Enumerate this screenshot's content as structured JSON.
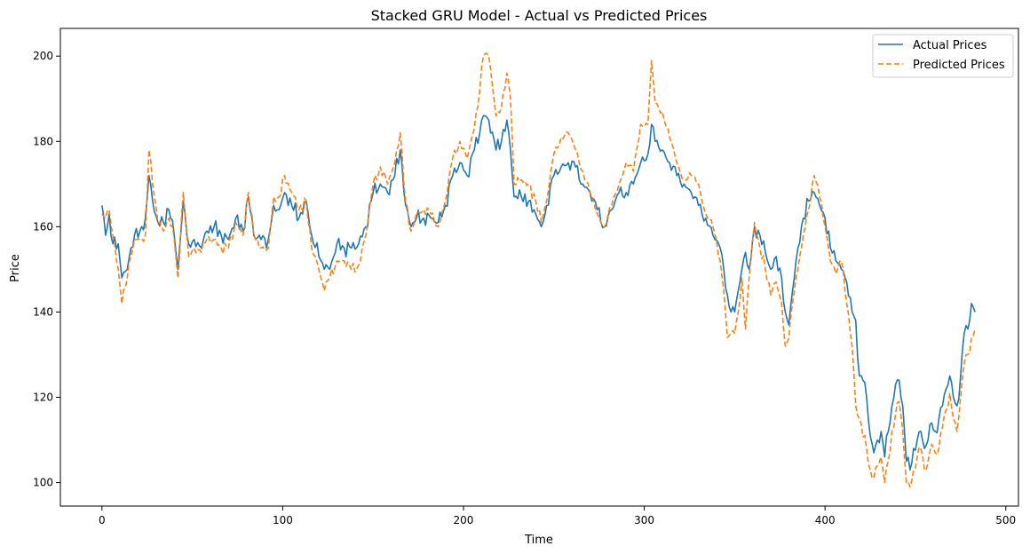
{
  "chart_data": {
    "type": "line",
    "title": "Stacked GRU Model - Actual vs Predicted Prices",
    "xlabel": "Time",
    "ylabel": "Price",
    "xlim": [
      -23,
      507
    ],
    "ylim": [
      94.5,
      206.5
    ],
    "x_ticks": [
      0,
      100,
      200,
      300,
      400,
      500
    ],
    "y_ticks": [
      100,
      120,
      140,
      160,
      180,
      200
    ],
    "grid": false,
    "legend_position": "top-right",
    "series": [
      {
        "name": "Actual Prices",
        "color": "#1f77b4",
        "style": "solid",
        "knots": [
          [
            0,
            165
          ],
          [
            2,
            158
          ],
          [
            4,
            163
          ],
          [
            6,
            156
          ],
          [
            9,
            156
          ],
          [
            11,
            148
          ],
          [
            14,
            150
          ],
          [
            16,
            155
          ],
          [
            18,
            158
          ],
          [
            21,
            159
          ],
          [
            24,
            162
          ],
          [
            26,
            172
          ],
          [
            28,
            166
          ],
          [
            31,
            161
          ],
          [
            34,
            161
          ],
          [
            37,
            164
          ],
          [
            40,
            158
          ],
          [
            42,
            150
          ],
          [
            45,
            166
          ],
          [
            48,
            156
          ],
          [
            51,
            157
          ],
          [
            55,
            155
          ],
          [
            58,
            159
          ],
          [
            62,
            160
          ],
          [
            66,
            158
          ],
          [
            70,
            157
          ],
          [
            74,
            162
          ],
          [
            78,
            159
          ],
          [
            81,
            167
          ],
          [
            84,
            158
          ],
          [
            88,
            157
          ],
          [
            92,
            157
          ],
          [
            95,
            165
          ],
          [
            98,
            164
          ],
          [
            101,
            168
          ],
          [
            105,
            165
          ],
          [
            109,
            162
          ],
          [
            113,
            166
          ],
          [
            116,
            158
          ],
          [
            120,
            153
          ],
          [
            123,
            150
          ],
          [
            126,
            150
          ],
          [
            130,
            156
          ],
          [
            134,
            155
          ],
          [
            138,
            155
          ],
          [
            142,
            156
          ],
          [
            146,
            160
          ],
          [
            150,
            168
          ],
          [
            154,
            170
          ],
          [
            158,
            168
          ],
          [
            162,
            172
          ],
          [
            165,
            178
          ],
          [
            168,
            165
          ],
          [
            171,
            160
          ],
          [
            174,
            162
          ],
          [
            178,
            162
          ],
          [
            182,
            162
          ],
          [
            186,
            161
          ],
          [
            190,
            165
          ],
          [
            194,
            172
          ],
          [
            198,
            175
          ],
          [
            202,
            172
          ],
          [
            206,
            178
          ],
          [
            209,
            182
          ],
          [
            211,
            186
          ],
          [
            214,
            185
          ],
          [
            218,
            178
          ],
          [
            221,
            180
          ],
          [
            224,
            185
          ],
          [
            226,
            178
          ],
          [
            228,
            167
          ],
          [
            232,
            167
          ],
          [
            236,
            166
          ],
          [
            240,
            163
          ],
          [
            243,
            160
          ],
          [
            246,
            165
          ],
          [
            250,
            172
          ],
          [
            254,
            174
          ],
          [
            258,
            175
          ],
          [
            262,
            174
          ],
          [
            266,
            170
          ],
          [
            270,
            168
          ],
          [
            274,
            164
          ],
          [
            278,
            160
          ],
          [
            282,
            164
          ],
          [
            286,
            168
          ],
          [
            290,
            168
          ],
          [
            294,
            170
          ],
          [
            298,
            175
          ],
          [
            302,
            177
          ],
          [
            304,
            184
          ],
          [
            306,
            180
          ],
          [
            310,
            178
          ],
          [
            314,
            175
          ],
          [
            318,
            172
          ],
          [
            322,
            170
          ],
          [
            326,
            168
          ],
          [
            330,
            165
          ],
          [
            334,
            162
          ],
          [
            338,
            158
          ],
          [
            342,
            155
          ],
          [
            344,
            150
          ],
          [
            346,
            144
          ],
          [
            348,
            140
          ],
          [
            350,
            140
          ],
          [
            352,
            145
          ],
          [
            354,
            150
          ],
          [
            356,
            154
          ],
          [
            358,
            150
          ],
          [
            361,
            160
          ],
          [
            364,
            158
          ],
          [
            367,
            154
          ],
          [
            370,
            150
          ],
          [
            373,
            153
          ],
          [
            376,
            148
          ],
          [
            378,
            140
          ],
          [
            380,
            137
          ],
          [
            382,
            145
          ],
          [
            385,
            155
          ],
          [
            388,
            162
          ],
          [
            391,
            166
          ],
          [
            394,
            168
          ],
          [
            397,
            165
          ],
          [
            400,
            162
          ],
          [
            403,
            155
          ],
          [
            406,
            152
          ],
          [
            409,
            150
          ],
          [
            412,
            147
          ],
          [
            415,
            140
          ],
          [
            417,
            138
          ],
          [
            419,
            125
          ],
          [
            421,
            124
          ],
          [
            423,
            120
          ],
          [
            425,
            111
          ],
          [
            427,
            107
          ],
          [
            429,
            110
          ],
          [
            431,
            112
          ],
          [
            433,
            106
          ],
          [
            435,
            112
          ],
          [
            437,
            118
          ],
          [
            439,
            123
          ],
          [
            441,
            124
          ],
          [
            443,
            118
          ],
          [
            445,
            105
          ],
          [
            447,
            103
          ],
          [
            449,
            108
          ],
          [
            451,
            110
          ],
          [
            453,
            112
          ],
          [
            455,
            108
          ],
          [
            457,
            110
          ],
          [
            459,
            114
          ],
          [
            461,
            112
          ],
          [
            463,
            115
          ],
          [
            465,
            118
          ],
          [
            467,
            122
          ],
          [
            469,
            125
          ],
          [
            471,
            120
          ],
          [
            473,
            118
          ],
          [
            475,
            125
          ],
          [
            477,
            135
          ],
          [
            479,
            136
          ],
          [
            481,
            142
          ],
          [
            483,
            140
          ]
        ]
      },
      {
        "name": "Predicted Prices",
        "color": "#ff7f0e",
        "style": "dashed",
        "knots": [
          [
            0,
            163
          ],
          [
            2,
            162
          ],
          [
            4,
            164
          ],
          [
            6,
            158
          ],
          [
            9,
            150
          ],
          [
            11,
            142
          ],
          [
            14,
            148
          ],
          [
            16,
            153
          ],
          [
            18,
            157
          ],
          [
            21,
            157
          ],
          [
            24,
            158
          ],
          [
            26,
            178
          ],
          [
            28,
            170
          ],
          [
            31,
            161
          ],
          [
            34,
            159
          ],
          [
            37,
            162
          ],
          [
            40,
            157
          ],
          [
            42,
            148
          ],
          [
            45,
            168
          ],
          [
            48,
            153
          ],
          [
            51,
            155
          ],
          [
            55,
            154
          ],
          [
            58,
            157
          ],
          [
            62,
            157
          ],
          [
            66,
            155
          ],
          [
            70,
            155
          ],
          [
            74,
            161
          ],
          [
            78,
            158
          ],
          [
            81,
            168
          ],
          [
            84,
            158
          ],
          [
            88,
            155
          ],
          [
            92,
            155
          ],
          [
            95,
            167
          ],
          [
            98,
            167
          ],
          [
            101,
            172
          ],
          [
            105,
            168
          ],
          [
            109,
            164
          ],
          [
            113,
            166
          ],
          [
            116,
            155
          ],
          [
            120,
            150
          ],
          [
            123,
            145
          ],
          [
            126,
            148
          ],
          [
            130,
            152
          ],
          [
            134,
            152
          ],
          [
            138,
            150
          ],
          [
            142,
            151
          ],
          [
            146,
            158
          ],
          [
            150,
            170
          ],
          [
            154,
            174
          ],
          [
            158,
            170
          ],
          [
            162,
            175
          ],
          [
            165,
            182
          ],
          [
            168,
            166
          ],
          [
            171,
            159
          ],
          [
            174,
            163
          ],
          [
            178,
            164
          ],
          [
            182,
            163
          ],
          [
            186,
            160
          ],
          [
            190,
            166
          ],
          [
            194,
            176
          ],
          [
            198,
            180
          ],
          [
            202,
            176
          ],
          [
            206,
            183
          ],
          [
            209,
            192
          ],
          [
            211,
            200
          ],
          [
            214,
            200
          ],
          [
            218,
            186
          ],
          [
            221,
            188
          ],
          [
            224,
            196
          ],
          [
            226,
            190
          ],
          [
            228,
            170
          ],
          [
            232,
            171
          ],
          [
            236,
            170
          ],
          [
            240,
            166
          ],
          [
            243,
            161
          ],
          [
            246,
            166
          ],
          [
            250,
            177
          ],
          [
            254,
            181
          ],
          [
            258,
            182
          ],
          [
            262,
            178
          ],
          [
            266,
            173
          ],
          [
            270,
            168
          ],
          [
            274,
            163
          ],
          [
            278,
            160
          ],
          [
            282,
            165
          ],
          [
            286,
            170
          ],
          [
            290,
            175
          ],
          [
            294,
            173
          ],
          [
            298,
            184
          ],
          [
            302,
            184
          ],
          [
            304,
            199
          ],
          [
            306,
            189
          ],
          [
            310,
            187
          ],
          [
            314,
            181
          ],
          [
            318,
            175
          ],
          [
            322,
            171
          ],
          [
            326,
            172
          ],
          [
            330,
            170
          ],
          [
            334,
            163
          ],
          [
            338,
            160
          ],
          [
            342,
            152
          ],
          [
            344,
            145
          ],
          [
            346,
            134
          ],
          [
            348,
            135
          ],
          [
            350,
            135
          ],
          [
            352,
            140
          ],
          [
            354,
            148
          ],
          [
            356,
            136
          ],
          [
            358,
            148
          ],
          [
            361,
            161
          ],
          [
            364,
            155
          ],
          [
            367,
            150
          ],
          [
            370,
            144
          ],
          [
            373,
            147
          ],
          [
            376,
            142
          ],
          [
            378,
            132
          ],
          [
            380,
            134
          ],
          [
            382,
            142
          ],
          [
            385,
            150
          ],
          [
            388,
            158
          ],
          [
            391,
            164
          ],
          [
            394,
            172
          ],
          [
            397,
            167
          ],
          [
            400,
            160
          ],
          [
            403,
            152
          ],
          [
            406,
            149
          ],
          [
            409,
            152
          ],
          [
            412,
            142
          ],
          [
            415,
            132
          ],
          [
            417,
            118
          ],
          [
            419,
            115
          ],
          [
            423,
            108
          ],
          [
            425,
            103
          ],
          [
            427,
            101
          ],
          [
            429,
            104
          ],
          [
            431,
            106
          ],
          [
            433,
            100
          ],
          [
            435,
            105
          ],
          [
            437,
            112
          ],
          [
            439,
            116
          ],
          [
            441,
            119
          ],
          [
            443,
            112
          ],
          [
            445,
            100
          ],
          [
            447,
            99
          ],
          [
            449,
            103
          ],
          [
            451,
            106
          ],
          [
            453,
            108
          ],
          [
            455,
            103
          ],
          [
            457,
            105
          ],
          [
            459,
            109
          ],
          [
            461,
            107
          ],
          [
            463,
            108
          ],
          [
            465,
            113
          ],
          [
            467,
            117
          ],
          [
            469,
            121
          ],
          [
            471,
            115
          ],
          [
            473,
            112
          ],
          [
            475,
            120
          ],
          [
            477,
            128
          ],
          [
            479,
            130
          ],
          [
            481,
            134
          ],
          [
            483,
            136
          ]
        ]
      }
    ]
  }
}
